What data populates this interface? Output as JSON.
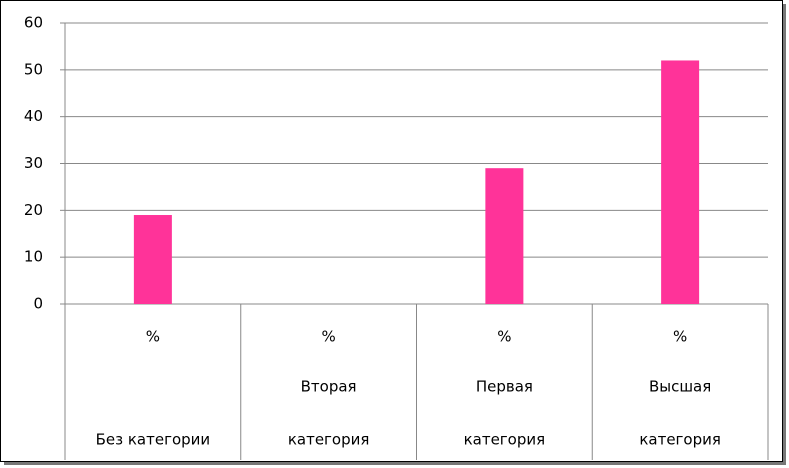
{
  "chart_data": {
    "type": "bar",
    "subcategories": [
      "%",
      "%",
      "%",
      "%"
    ],
    "categories": [
      [
        "Без категории"
      ],
      [
        "Вторая",
        "категория"
      ],
      [
        "Первая",
        "категория"
      ],
      [
        "Высшая",
        "категория"
      ]
    ],
    "values": [
      19,
      0,
      29,
      52
    ],
    "color": "#ff3399",
    "ylim": [
      0,
      60
    ],
    "yticks": [
      0,
      10,
      20,
      30,
      40,
      50,
      60
    ],
    "grid": true
  }
}
